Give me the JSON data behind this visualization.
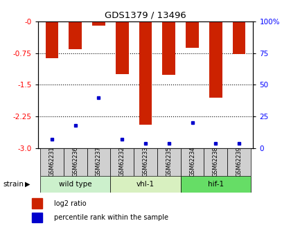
{
  "title": "GDS1379 / 13496",
  "samples": [
    "GSM62231",
    "GSM62236",
    "GSM62237",
    "GSM62232",
    "GSM62233",
    "GSM62235",
    "GSM62234",
    "GSM62238",
    "GSM62239"
  ],
  "log2_ratios": [
    -0.87,
    -0.65,
    -0.1,
    -1.25,
    -2.45,
    -1.27,
    -0.62,
    -1.8,
    -0.77
  ],
  "percentile_ranks": [
    7,
    18,
    40,
    7,
    4,
    4,
    20,
    4,
    4
  ],
  "groups": [
    {
      "label": "wild type",
      "indices": [
        0,
        1,
        2
      ],
      "color": "#ccf0cc"
    },
    {
      "label": "vhl-1",
      "indices": [
        3,
        4,
        5
      ],
      "color": "#d8f0c0"
    },
    {
      "label": "hif-1",
      "indices": [
        6,
        7,
        8
      ],
      "color": "#66dd66"
    }
  ],
  "ylim_left": [
    -3.0,
    0.0
  ],
  "ylim_right": [
    0,
    100
  ],
  "yticks_left": [
    -3.0,
    -2.25,
    -1.5,
    -0.75,
    0.0
  ],
  "yticks_right": [
    0,
    25,
    50,
    75,
    100
  ],
  "bar_color": "#cc2200",
  "dot_color": "#0000cc",
  "bar_width": 0.55,
  "legend_items": [
    {
      "label": "log2 ratio",
      "color": "#cc2200"
    },
    {
      "label": "percentile rank within the sample",
      "color": "#0000cc"
    }
  ],
  "strain_label": "strain",
  "bg_color": "#ffffff",
  "grid_color": "#000000",
  "sample_box_color": "#d0d0d0"
}
